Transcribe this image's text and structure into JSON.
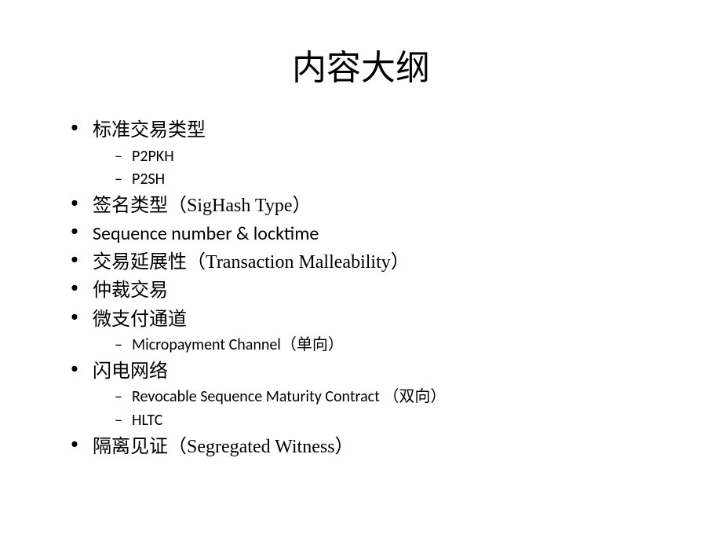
{
  "title": "内容大纲",
  "items": [
    {
      "label": "标准交易类型",
      "sub": [
        {
          "label": "P2PKH"
        },
        {
          "label": "P2SH"
        }
      ]
    },
    {
      "label": "签名类型（SigHash Type）"
    },
    {
      "label": "Sequence  number & locktime"
    },
    {
      "label": "交易延展性（Transaction Malleability）"
    },
    {
      "label": "仲裁交易"
    },
    {
      "label": "微支付通道",
      "sub": [
        {
          "label": "Micropayment Channel（单向）"
        }
      ]
    },
    {
      "label": "闪电网络",
      "sub": [
        {
          "label": "Revocable Sequence Maturity Contract （双向）"
        },
        {
          "label": "HLTC"
        }
      ]
    },
    {
      "label": "隔离见证（Segregated Witness）"
    }
  ],
  "colors": {
    "text": "#000000",
    "background": "#ffffff"
  },
  "fontsize": {
    "title": 44,
    "item": 24,
    "subitem": 20
  }
}
